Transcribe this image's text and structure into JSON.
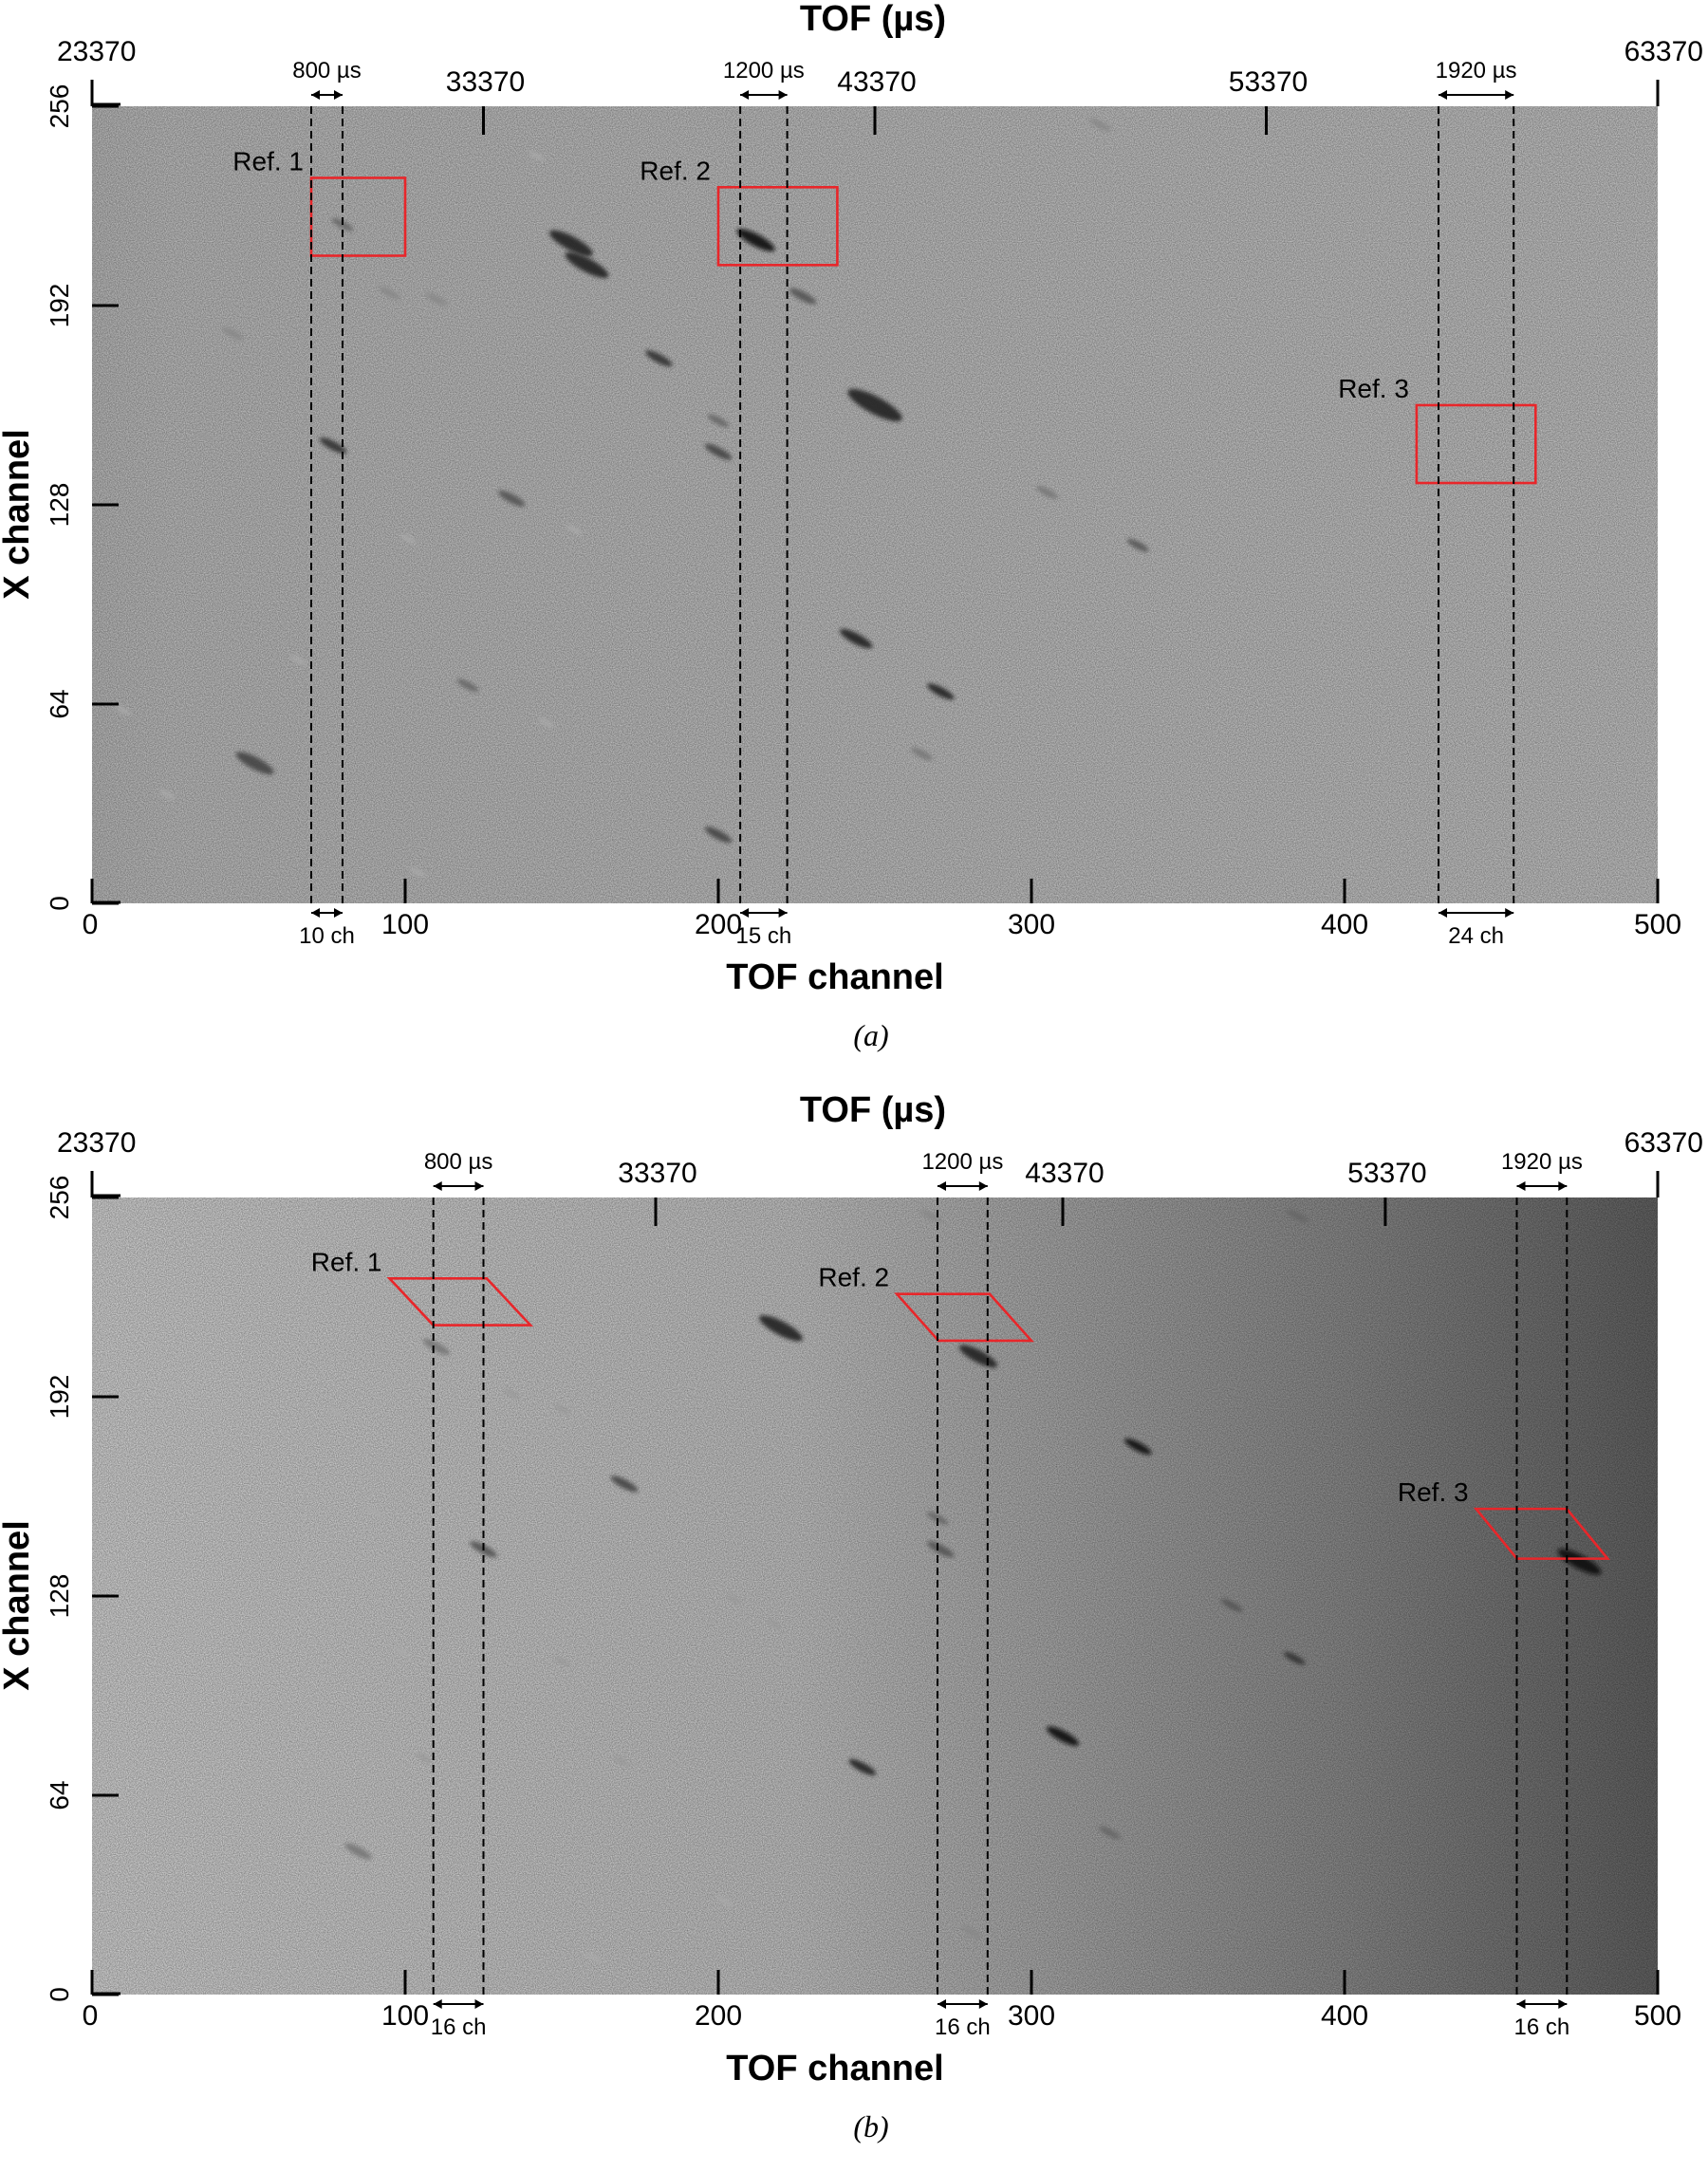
{
  "figure": {
    "panels": [
      {
        "id": "a",
        "caption": "(a)",
        "top_axis_title": "TOF (µs)",
        "bottom_axis_title": "TOF channel",
        "left_axis_title": "X channel",
        "tof_labels": [
          "23370",
          "33370",
          "43370",
          "53370",
          "63370"
        ],
        "tof_ticks_channel": [
          125,
          250,
          375
        ],
        "x_ticks": [
          "0",
          "100",
          "200",
          "300",
          "400",
          "500"
        ],
        "y_ticks": [
          "0",
          "64",
          "128",
          "192",
          "256"
        ],
        "background": "uniform",
        "refs": [
          {
            "label": "Ref. 1",
            "shape": "rect",
            "ch_from": 70,
            "ch_to": 100,
            "x_from": 208,
            "x_to": 233,
            "dash_ch": [
              70,
              80
            ],
            "width_label": "10 ch",
            "tof_label": "800 µs"
          },
          {
            "label": "Ref. 2",
            "shape": "rect",
            "ch_from": 200,
            "ch_to": 238,
            "x_from": 205,
            "x_to": 230,
            "dash_ch": [
              207,
              222
            ],
            "width_label": "15 ch",
            "tof_label": "1200 µs"
          },
          {
            "label": "Ref. 3",
            "shape": "rect",
            "ch_from": 423,
            "ch_to": 461,
            "x_from": 135,
            "x_to": 160,
            "dash_ch": [
              430,
              454
            ],
            "width_label": "24 ch",
            "tof_label": "1920 µs"
          }
        ]
      },
      {
        "id": "b",
        "caption": "(b)",
        "top_axis_title": "TOF (µs)",
        "bottom_axis_title": "TOF channel",
        "left_axis_title": "X channel",
        "tof_labels": [
          "23370",
          "33370",
          "43370",
          "53370",
          "63370"
        ],
        "tof_ticks_channel": [
          180,
          310,
          413
        ],
        "x_ticks": [
          "0",
          "100",
          "200",
          "300",
          "400",
          "500"
        ],
        "y_ticks": [
          "0",
          "64",
          "128",
          "192",
          "256"
        ],
        "background": "gradient",
        "refs": [
          {
            "label": "Ref. 1",
            "shape": "para",
            "ch_from": 95,
            "ch_to": 140,
            "x_from": 215,
            "x_to": 230,
            "dash_ch": [
              109,
              125
            ],
            "width_label": "16 ch",
            "tof_label": "800 µs"
          },
          {
            "label": "Ref. 2",
            "shape": "para",
            "ch_from": 257,
            "ch_to": 300,
            "x_from": 210,
            "x_to": 225,
            "dash_ch": [
              270,
              286
            ],
            "width_label": "16 ch",
            "tof_label": "1200 µs"
          },
          {
            "label": "Ref. 3",
            "shape": "para",
            "ch_from": 442,
            "ch_to": 484,
            "x_from": 140,
            "x_to": 156,
            "dash_ch": [
              455,
              471
            ],
            "width_label": "16 ch",
            "tof_label": "1920 µs"
          }
        ]
      }
    ],
    "spots_a": [
      [
        153,
        212,
        8,
        "#222"
      ],
      [
        158,
        205,
        8,
        "#222"
      ],
      [
        212,
        213,
        7,
        "#111"
      ],
      [
        227,
        195,
        5,
        "#555"
      ],
      [
        250,
        160,
        10,
        "#222"
      ],
      [
        271,
        68,
        5,
        "#222"
      ],
      [
        244,
        85,
        6,
        "#222"
      ],
      [
        181,
        175,
        5,
        "#333"
      ],
      [
        77,
        147,
        5,
        "#333"
      ],
      [
        134,
        130,
        5,
        "#555"
      ],
      [
        200,
        145,
        5,
        "#444"
      ],
      [
        120,
        70,
        4,
        "#666"
      ],
      [
        200,
        155,
        4,
        "#666"
      ],
      [
        80,
        218,
        4,
        "#666"
      ],
      [
        200,
        22,
        5,
        "#444"
      ],
      [
        52,
        45,
        7,
        "#444"
      ],
      [
        45,
        183,
        4,
        "#888"
      ],
      [
        110,
        194,
        4,
        "#888"
      ],
      [
        95,
        196,
        4,
        "#888"
      ],
      [
        22,
        113,
        3,
        "#999"
      ],
      [
        265,
        48,
        4,
        "#777"
      ],
      [
        305,
        132,
        4,
        "#777"
      ],
      [
        334,
        115,
        4,
        "#555"
      ],
      [
        322,
        250,
        4,
        "#888"
      ],
      [
        197,
        258,
        4,
        "#888"
      ],
      [
        43,
        261,
        3,
        "#999"
      ],
      [
        66,
        78,
        3,
        "#aaa"
      ],
      [
        154,
        120,
        3,
        "#aaa"
      ],
      [
        145,
        58,
        3,
        "#aaa"
      ],
      [
        101,
        117,
        3,
        "#aaa"
      ],
      [
        10,
        62,
        3,
        "#aaa"
      ],
      [
        24,
        35,
        3,
        "#aaa"
      ],
      [
        104,
        10,
        3,
        "#aaa"
      ],
      [
        36,
        150,
        3,
        "#999"
      ],
      [
        142,
        240,
        3,
        "#aaa"
      ]
    ],
    "spots_b": [
      [
        283,
        205,
        7,
        "#222"
      ],
      [
        110,
        208,
        5,
        "#777"
      ],
      [
        220,
        214,
        8,
        "#222"
      ],
      [
        334,
        176,
        5,
        "#111"
      ],
      [
        475,
        139,
        8,
        "#111"
      ],
      [
        246,
        73,
        5,
        "#222"
      ],
      [
        310,
        83,
        6,
        "#111"
      ],
      [
        170,
        164,
        5,
        "#444"
      ],
      [
        125,
        143,
        5,
        "#555"
      ],
      [
        270,
        153,
        4,
        "#666"
      ],
      [
        271,
        143,
        5,
        "#555"
      ],
      [
        364,
        125,
        4,
        "#555"
      ],
      [
        384,
        108,
        4,
        "#333"
      ],
      [
        325,
        52,
        4,
        "#666"
      ],
      [
        85,
        46,
        5,
        "#777"
      ],
      [
        150,
        107,
        3,
        "#999"
      ],
      [
        134,
        193,
        3,
        "#999"
      ],
      [
        150,
        188,
        3,
        "#999"
      ],
      [
        78,
        187,
        3,
        "#aaa"
      ],
      [
        32,
        115,
        3,
        "#aaa"
      ],
      [
        20,
        65,
        3,
        "#aaa"
      ],
      [
        43,
        30,
        3,
        "#aaa"
      ],
      [
        90,
        155,
        3,
        "#aaa"
      ],
      [
        106,
        76,
        3,
        "#999"
      ],
      [
        169,
        75,
        3,
        "#999"
      ],
      [
        205,
        127,
        3,
        "#999"
      ],
      [
        218,
        119,
        3,
        "#999"
      ],
      [
        281,
        20,
        4,
        "#888"
      ],
      [
        385,
        250,
        4,
        "#666"
      ],
      [
        268,
        250,
        4,
        "#888"
      ],
      [
        75,
        258,
        3,
        "#aaa"
      ],
      [
        160,
        12,
        3,
        "#aaa"
      ],
      [
        99,
        110,
        3,
        "#aaa"
      ],
      [
        202,
        30,
        3,
        "#aaa"
      ]
    ]
  }
}
